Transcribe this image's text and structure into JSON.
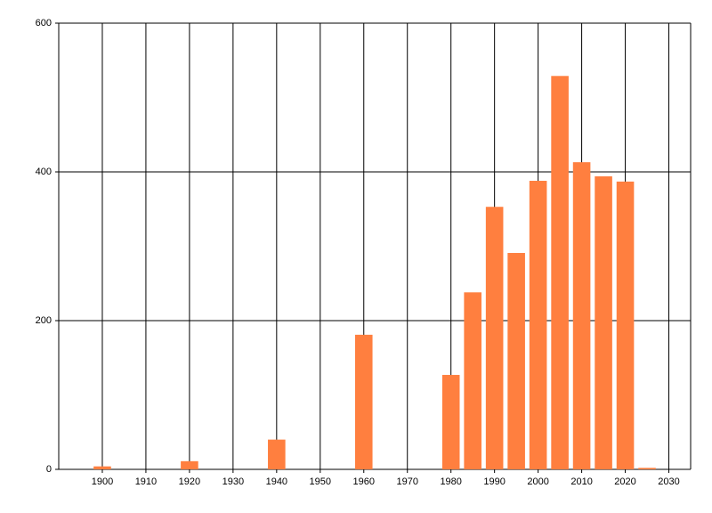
{
  "chart_data": {
    "type": "bar",
    "x": [
      1900,
      1920,
      1940,
      1960,
      1980,
      1985,
      1990,
      1995,
      2000,
      2005,
      2010,
      2015,
      2020,
      2025
    ],
    "values": [
      4,
      11,
      40,
      181,
      127,
      238,
      353,
      291,
      388,
      529,
      413,
      394,
      387,
      2
    ],
    "color": "#ff7f3f",
    "xlim": [
      1890,
      2035
    ],
    "xticks": [
      1900,
      1910,
      1920,
      1930,
      1940,
      1950,
      1960,
      1970,
      1980,
      1990,
      2000,
      2010,
      2020,
      2030
    ],
    "ylim": [
      0,
      600
    ],
    "yticks": [
      0,
      200,
      400,
      600
    ],
    "grid": true
  }
}
